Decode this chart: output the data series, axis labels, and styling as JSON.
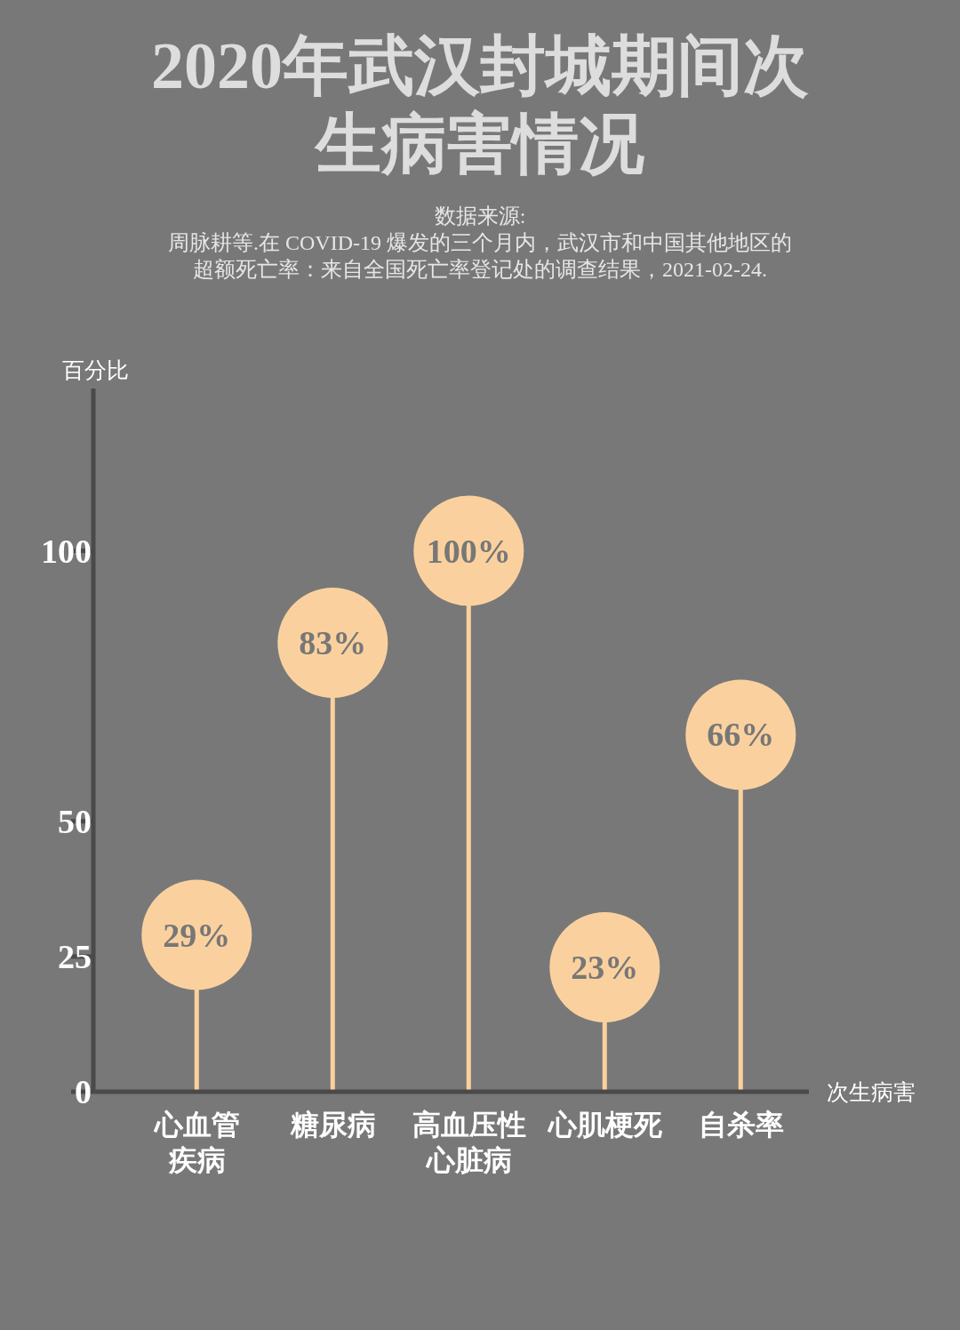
{
  "chart_data": {
    "type": "lollipop",
    "title": "2020年武汉封城期间次生病害情况",
    "annotations": [
      "数据来源:",
      "周脉耕等.在 COVID-19 爆发的三个月内，武汉市和中国其他地区的",
      "超额死亡率：来自全国死亡率登记处的调查结果，2021-02-24."
    ],
    "ylabel": "百分比",
    "xlabel": "次生病害",
    "categories": [
      "心血管疾病",
      "糖尿病",
      "高血压性心脏病",
      "心肌梗死",
      "自杀率"
    ],
    "values": [
      29,
      83,
      100,
      23,
      66
    ],
    "color": "#fad19e",
    "ylim": [
      0,
      130
    ],
    "yticks": [
      0,
      25,
      50,
      100
    ],
    "value_labels": [
      "29%",
      "83%",
      "100%",
      "23%",
      "66%"
    ]
  }
}
